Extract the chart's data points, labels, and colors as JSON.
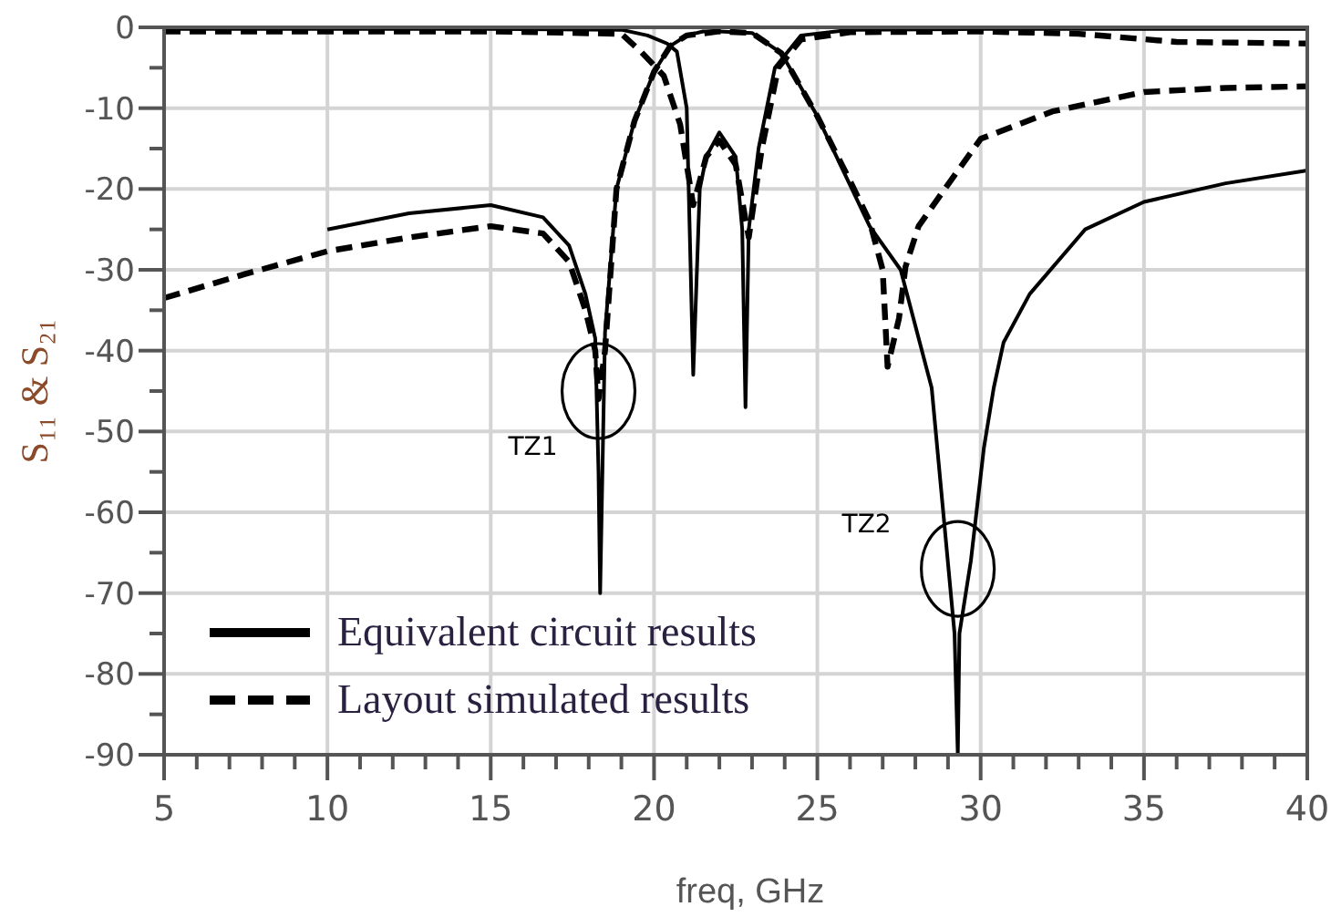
{
  "chart_data": {
    "type": "line",
    "xlabel": "freq, GHz",
    "ylabel": "S₁₁ & S₂₁",
    "xlim": [
      5,
      40
    ],
    "ylim": [
      -90,
      0
    ],
    "xticks": [
      5,
      {
        "value": 6,
        "label": null
      },
      {
        "value": 7,
        "label": null
      },
      {
        "value": 8,
        "label": null
      },
      {
        "value": 9,
        "label": null
      },
      10,
      {
        "value": 11,
        "label": null
      },
      {
        "value": 12,
        "label": null
      },
      {
        "value": 13,
        "label": null
      },
      {
        "value": 14,
        "label": null
      },
      15,
      {
        "value": 16,
        "label": null
      },
      {
        "value": 17,
        "label": null
      },
      {
        "value": 18,
        "label": null
      },
      {
        "value": 19,
        "label": null
      },
      20,
      {
        "value": 21,
        "label": null
      },
      {
        "value": 22,
        "label": null
      },
      {
        "value": 23,
        "label": null
      },
      {
        "value": 24,
        "label": null
      },
      25,
      {
        "value": 26,
        "label": null
      },
      {
        "value": 27,
        "label": null
      },
      {
        "value": 28,
        "label": null
      },
      {
        "value": 29,
        "label": null
      },
      30,
      {
        "value": 31,
        "label": null
      },
      {
        "value": 32,
        "label": null
      },
      {
        "value": 33,
        "label": null
      },
      {
        "value": 34,
        "label": null
      },
      35,
      {
        "value": 36,
        "label": null
      },
      {
        "value": 37,
        "label": null
      },
      {
        "value": 38,
        "label": null
      },
      {
        "value": 39,
        "label": null
      },
      40
    ],
    "yticks": [
      -90,
      {
        "value": -85,
        "label": null
      },
      -80,
      {
        "value": -75,
        "label": null
      },
      -70,
      {
        "value": -65,
        "label": null
      },
      -60,
      {
        "value": -55,
        "label": null
      },
      -50,
      {
        "value": -45,
        "label": null
      },
      -40,
      {
        "value": -35,
        "label": null
      },
      -30,
      {
        "value": -25,
        "label": null
      },
      -20,
      {
        "value": -15,
        "label": null
      },
      -10,
      {
        "value": -5,
        "label": null
      },
      0
    ],
    "grid": true,
    "legend": "bottom left",
    "series": [
      {
        "name": "Equivalent circuit results",
        "color": "#000000",
        "line_style": "solid",
        "x": [
          10,
          12.5,
          15,
          16.6,
          17.4,
          17.9,
          18.2,
          18.3,
          18.35,
          18.5,
          18.85,
          19.4,
          20,
          20.5,
          21,
          21.5,
          22,
          23,
          23.9,
          25,
          26.6,
          27.55,
          28.5,
          29.2,
          29.3,
          29.35,
          29.7,
          30.1,
          30.4,
          30.7,
          31.5,
          33.2,
          35,
          37.5,
          40
        ],
        "values": [
          -25,
          -23,
          -22,
          -23.5,
          -27,
          -33,
          -38.5,
          -55,
          -70,
          -37.7,
          -20,
          -11.6,
          -5.5,
          -2.3,
          -1,
          -0.5,
          -0.5,
          -0.7,
          -3.2,
          -11,
          -24.6,
          -30,
          -44.6,
          -75,
          -90,
          -75,
          -66,
          -52,
          -44.6,
          -39,
          -33,
          -25,
          -21.6,
          -19.3,
          -17.7
        ]
      },
      {
        "color": "#000000",
        "line_style": "solid",
        "x": [
          5,
          15,
          19,
          19.8,
          20.4,
          20.7,
          21,
          21.2,
          21.4,
          21.6,
          22,
          22.5,
          22.7,
          22.8,
          22.9,
          23.2,
          23.7,
          24.5,
          26,
          30,
          40
        ],
        "values": [
          -0.2,
          -0.2,
          -0.3,
          -1,
          -2,
          -3,
          -10,
          -43,
          -20,
          -16,
          -13,
          -16,
          -25,
          -47,
          -25,
          -15,
          -5,
          -1,
          -0.3,
          -0.2,
          -0.2
        ]
      },
      {
        "name": "Layout simulated results",
        "color": "#000000",
        "line_style": "dashed",
        "x": [
          5,
          7.5,
          10,
          12.5,
          15,
          16.6,
          17.4,
          17.9,
          18.2,
          18.3,
          18.5,
          18.85,
          19.4,
          20,
          20.5,
          21,
          22,
          23,
          23.9,
          25,
          26,
          26.6,
          27,
          27.15,
          27.5,
          27.7,
          28.1,
          28.9,
          30,
          32.2,
          35,
          37.5,
          40
        ],
        "values": [
          -33.5,
          -30.5,
          -27.7,
          -26,
          -24.6,
          -25.5,
          -29,
          -35,
          -40,
          -46,
          -40,
          -20,
          -11.6,
          -5.5,
          -2.3,
          -1,
          -0.5,
          -0.7,
          -3.2,
          -11,
          -19,
          -24,
          -30,
          -42,
          -36,
          -29.6,
          -24.6,
          -20,
          -13.8,
          -10.4,
          -8,
          -7.5,
          -7.3
        ]
      },
      {
        "color": "#000000",
        "line_style": "dashed",
        "x": [
          5,
          15,
          19,
          19.6,
          20.3,
          20.8,
          21.2,
          21.6,
          22,
          22.5,
          22.9,
          23.3,
          23.8,
          24.5,
          26,
          30,
          33,
          36,
          40
        ],
        "values": [
          -0.5,
          -0.5,
          -0.8,
          -3,
          -6,
          -12,
          -22,
          -16,
          -14,
          -17,
          -26,
          -15,
          -5,
          -1.5,
          -0.6,
          -0.5,
          -0.8,
          -1.8,
          -2
        ]
      }
    ],
    "annotations": [
      {
        "text": "TZ1",
        "x": 18.3,
        "y": -45
      },
      {
        "text": "TZ2",
        "x": 29.3,
        "y": -67
      }
    ]
  }
}
